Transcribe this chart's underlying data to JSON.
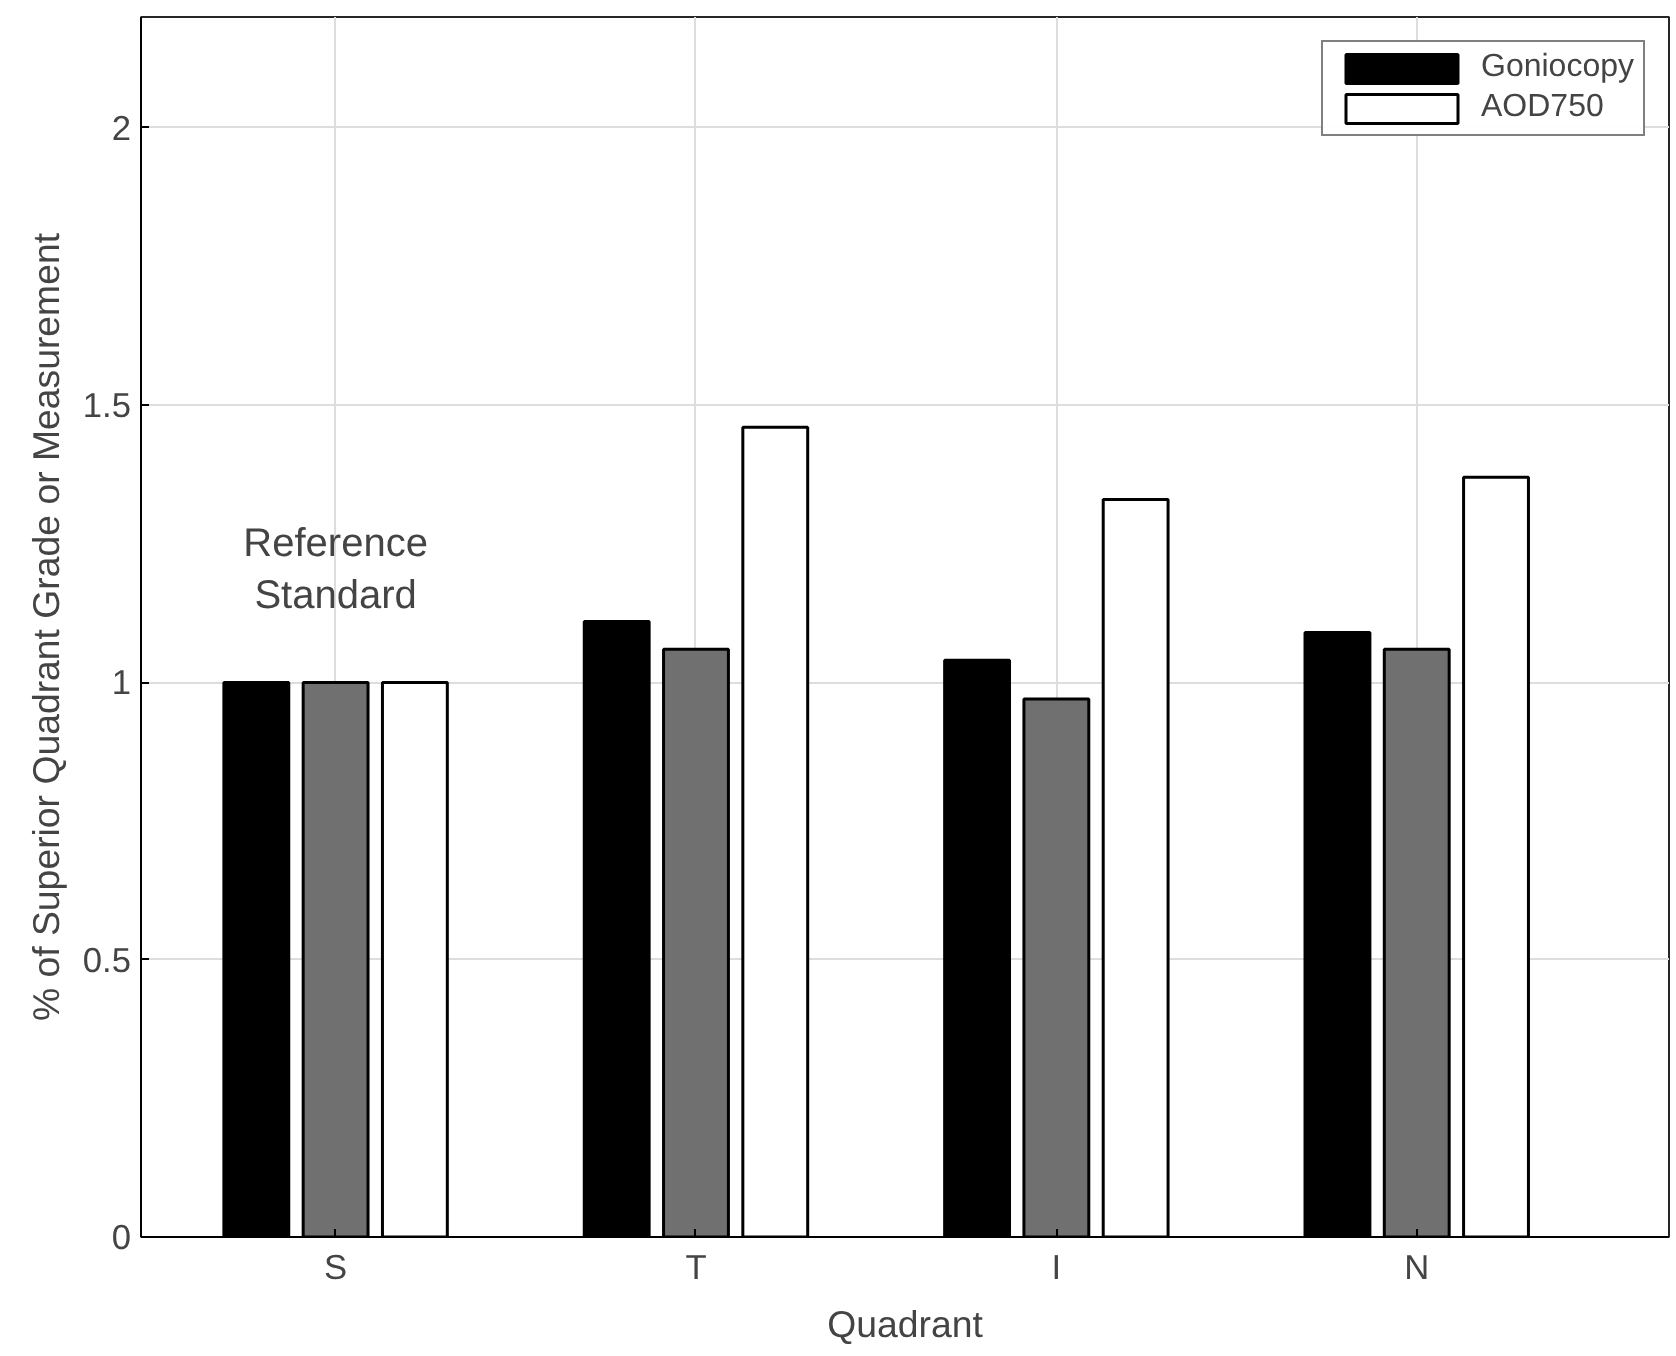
{
  "chart_data": {
    "type": "bar",
    "xlabel": "Quadrant",
    "ylabel": "% of Superior Quadrant Grade or Measurement",
    "categories": [
      "S",
      "T",
      "I",
      "N"
    ],
    "series": [
      {
        "name": "Goniocopy",
        "color": "#000000",
        "values": [
          1,
          1.11,
          1.04,
          1.09
        ]
      },
      {
        "color": "#707070",
        "values": [
          1,
          1.06,
          0.97,
          1.06
        ]
      },
      {
        "name": "AOD750",
        "color": "#ffffff",
        "values": [
          1,
          1.46,
          1.33,
          1.37
        ]
      }
    ],
    "ylim": [
      0,
      2.2
    ],
    "yticks": [
      0,
      0.5,
      1,
      1.5,
      2
    ],
    "grid": true,
    "legend": "top right",
    "annotations": [
      "Reference\nStandard"
    ]
  }
}
